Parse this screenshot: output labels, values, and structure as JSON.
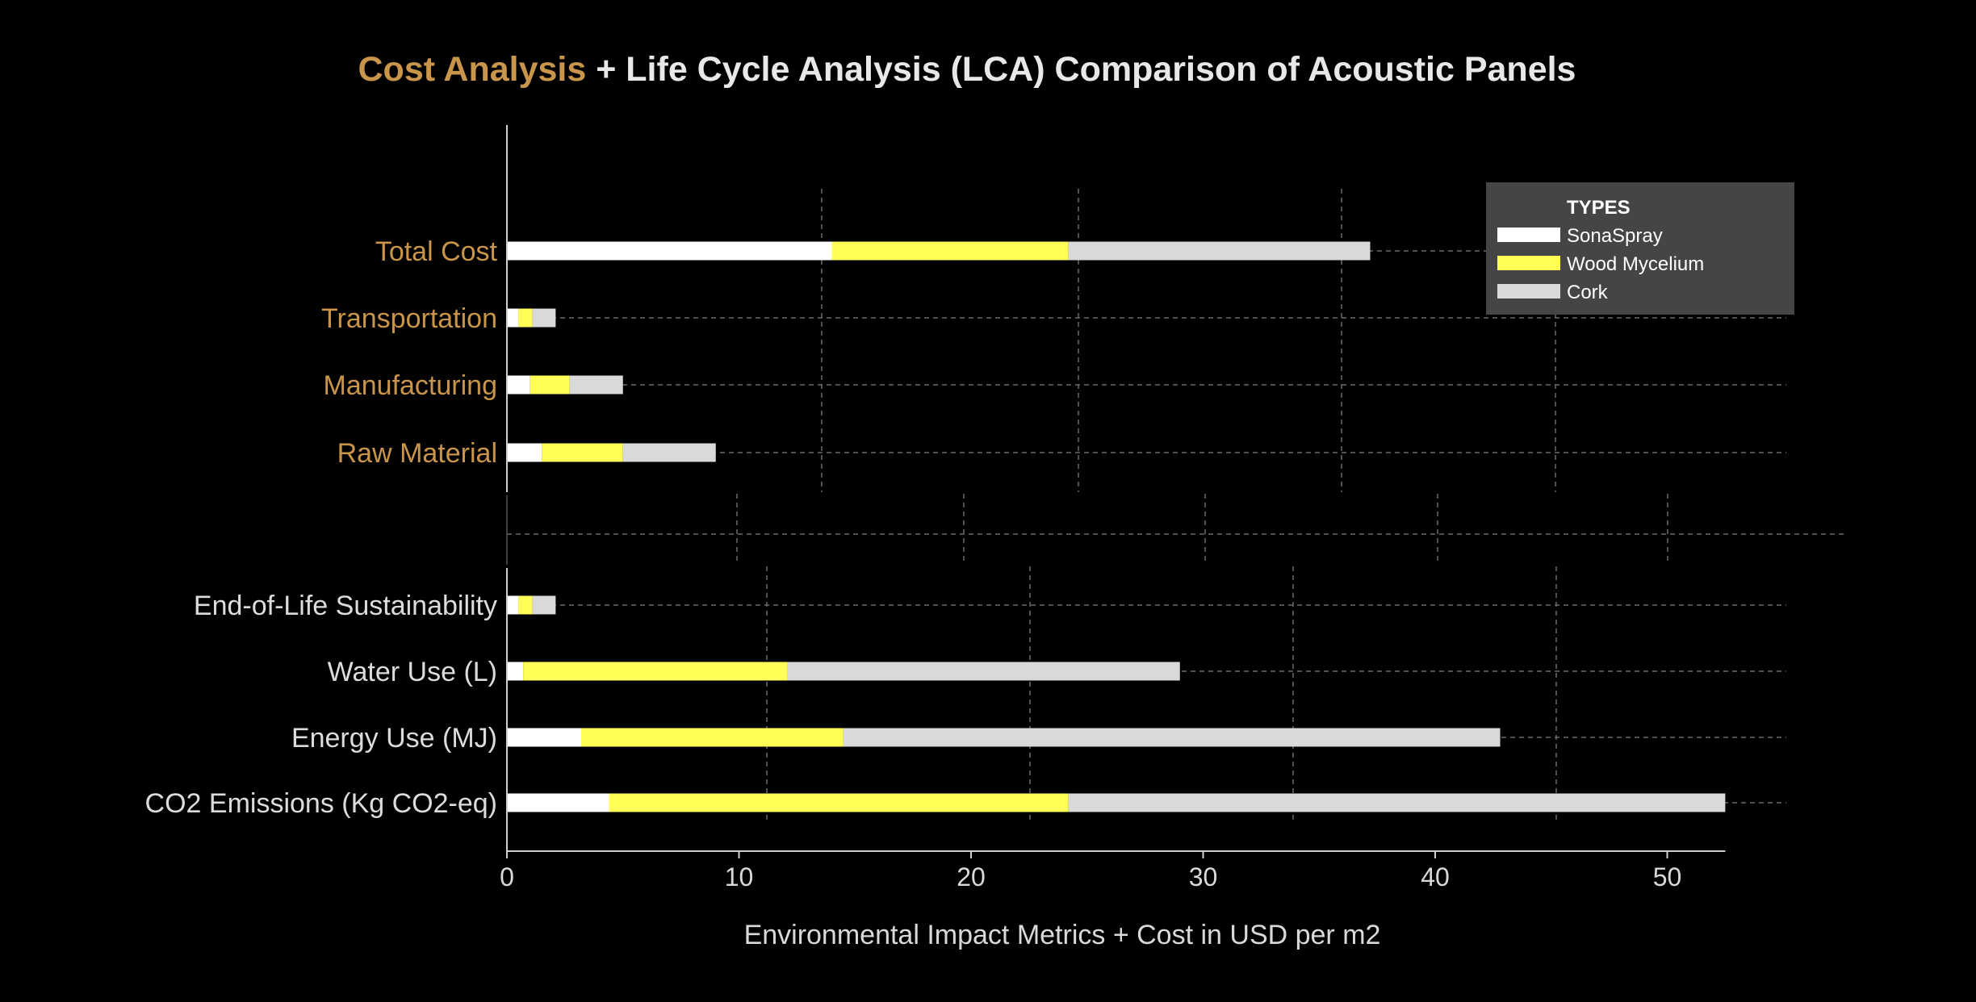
{
  "chart_data": {
    "type": "bar",
    "orientation": "horizontal",
    "stacked": true,
    "title_parts": [
      {
        "text": "Cost Analysis",
        "color": "#c9954a"
      },
      {
        "text": " + Life Cycle Analysis (LCA) Comparison of Acoustic Panels",
        "color": "#e8e8e8"
      }
    ],
    "xlabel": "Environmental Impact Metrics + Cost in USD per m2",
    "ylabel": "",
    "xlim": [
      0,
      52.5
    ],
    "xticks": [
      0,
      10,
      20,
      30,
      40,
      50
    ],
    "grid": true,
    "legend": {
      "title": "TYPES",
      "placement": "top-right"
    },
    "groups": [
      {
        "name": "cost",
        "label_color": "#c9954a",
        "categories": [
          "Total Cost",
          "Transportation",
          "Manufacturing",
          "Raw Material"
        ]
      },
      {
        "name": "lca",
        "label_color": "#dcdcdc",
        "categories": [
          "End-of-Life Sustainability",
          "Water Use (L)",
          "Energy Use (MJ)",
          "CO2 Emissions (Kg CO2-eq)"
        ]
      }
    ],
    "categories": [
      "Total Cost",
      "Transportation",
      "Manufacturing",
      "Raw Material",
      "End-of-Life Sustainability",
      "Water Use (L)",
      "Energy Use (MJ)",
      "CO2 Emissions (Kg CO2-eq)"
    ],
    "series": [
      {
        "name": "SonaSpray",
        "color": "#ffffff",
        "values": [
          14,
          0.5,
          1,
          1.5,
          0.5,
          0.7,
          3.2,
          4.4
        ]
      },
      {
        "name": "Wood Mycelium",
        "color": "#ffff57",
        "values": [
          10.2,
          0.6,
          1.7,
          3.5,
          0.6,
          11.4,
          11.3,
          19.8
        ]
      },
      {
        "name": "Cork",
        "color": "#d9d9d9",
        "values": [
          13,
          1,
          2.3,
          4,
          1,
          16.9,
          28.3,
          28.3
        ]
      }
    ]
  },
  "colors": {
    "background": "#000000",
    "grid": "#6a6a6a",
    "axis": "#cfcfcf",
    "legend_bg": "#454545"
  }
}
